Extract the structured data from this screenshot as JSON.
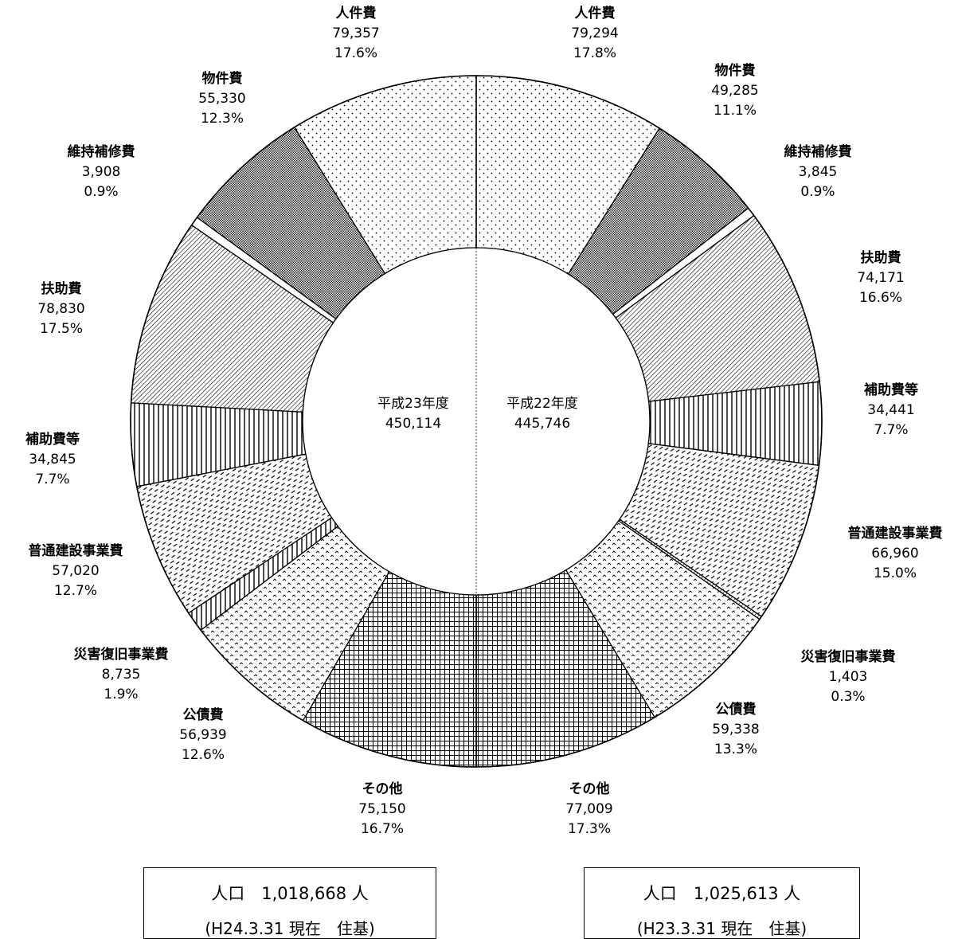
{
  "chart_data": {
    "type": "pie",
    "subtype": "half-donut comparison",
    "colors": {
      "ink": "#000000",
      "background": "#ffffff"
    },
    "left": {
      "center_label": "平成23年度",
      "total": "450,114",
      "slices": [
        {
          "name": "人件費",
          "value": 79357,
          "value_label": "79,357",
          "pct": "17.6%",
          "pattern": "dots"
        },
        {
          "name": "物件費",
          "value": 55330,
          "value_label": "55,330",
          "pct": "12.3%",
          "pattern": "dense-check"
        },
        {
          "name": "維持補修費",
          "value": 3908,
          "value_label": "3,908",
          "pct": "0.9%",
          "pattern": "blank"
        },
        {
          "name": "扶助費",
          "value": 78830,
          "value_label": "78,830",
          "pct": "17.5%",
          "pattern": "diag-lines"
        },
        {
          "name": "補助費等",
          "value": 34845,
          "value_label": "34,845",
          "pct": "7.7%",
          "pattern": "vertical-lines"
        },
        {
          "name": "普通建設事業費",
          "value": 57020,
          "value_label": "57,020",
          "pct": "12.7%",
          "pattern": "diag-dash"
        },
        {
          "name": "災害復旧事業費",
          "value": 8735,
          "value_label": "8,735",
          "pct": "1.9%",
          "pattern": "vertical-lines"
        },
        {
          "name": "公債費",
          "value": 56939,
          "value_label": "56,939",
          "pct": "12.6%",
          "pattern": "carets"
        },
        {
          "name": "その他",
          "value": 75150,
          "value_label": "75,150",
          "pct": "16.7%",
          "pattern": "grid"
        }
      ]
    },
    "right": {
      "center_label": "平成22年度",
      "total": "445,746",
      "slices": [
        {
          "name": "人件費",
          "value": 79294,
          "value_label": "79,294",
          "pct": "17.8%",
          "pattern": "dots"
        },
        {
          "name": "物件費",
          "value": 49285,
          "value_label": "49,285",
          "pct": "11.1%",
          "pattern": "dense-check"
        },
        {
          "name": "維持補修費",
          "value": 3845,
          "value_label": "3,845",
          "pct": "0.9%",
          "pattern": "blank"
        },
        {
          "name": "扶助費",
          "value": 74171,
          "value_label": "74,171",
          "pct": "16.6%",
          "pattern": "diag-lines"
        },
        {
          "name": "補助費等",
          "value": 34441,
          "value_label": "34,441",
          "pct": "7.7%",
          "pattern": "vertical-lines"
        },
        {
          "name": "普通建設事業費",
          "value": 66960,
          "value_label": "66,960",
          "pct": "15.0%",
          "pattern": "diag-dash"
        },
        {
          "name": "災害復旧事業費",
          "value": 1403,
          "value_label": "1,403",
          "pct": "0.3%",
          "pattern": "diag-lines"
        },
        {
          "name": "公債費",
          "value": 59338,
          "value_label": "59,338",
          "pct": "13.3%",
          "pattern": "carets"
        },
        {
          "name": "その他",
          "value": 77009,
          "value_label": "77,009",
          "pct": "17.3%",
          "pattern": "grid"
        }
      ]
    }
  },
  "population": {
    "left": {
      "line1": "人口　1,018,668 人",
      "line2": "(H24.3.31 現在　住基)"
    },
    "right": {
      "line1": "人口　1,025,613 人",
      "line2": "(H23.3.31 現在　住基)"
    }
  }
}
